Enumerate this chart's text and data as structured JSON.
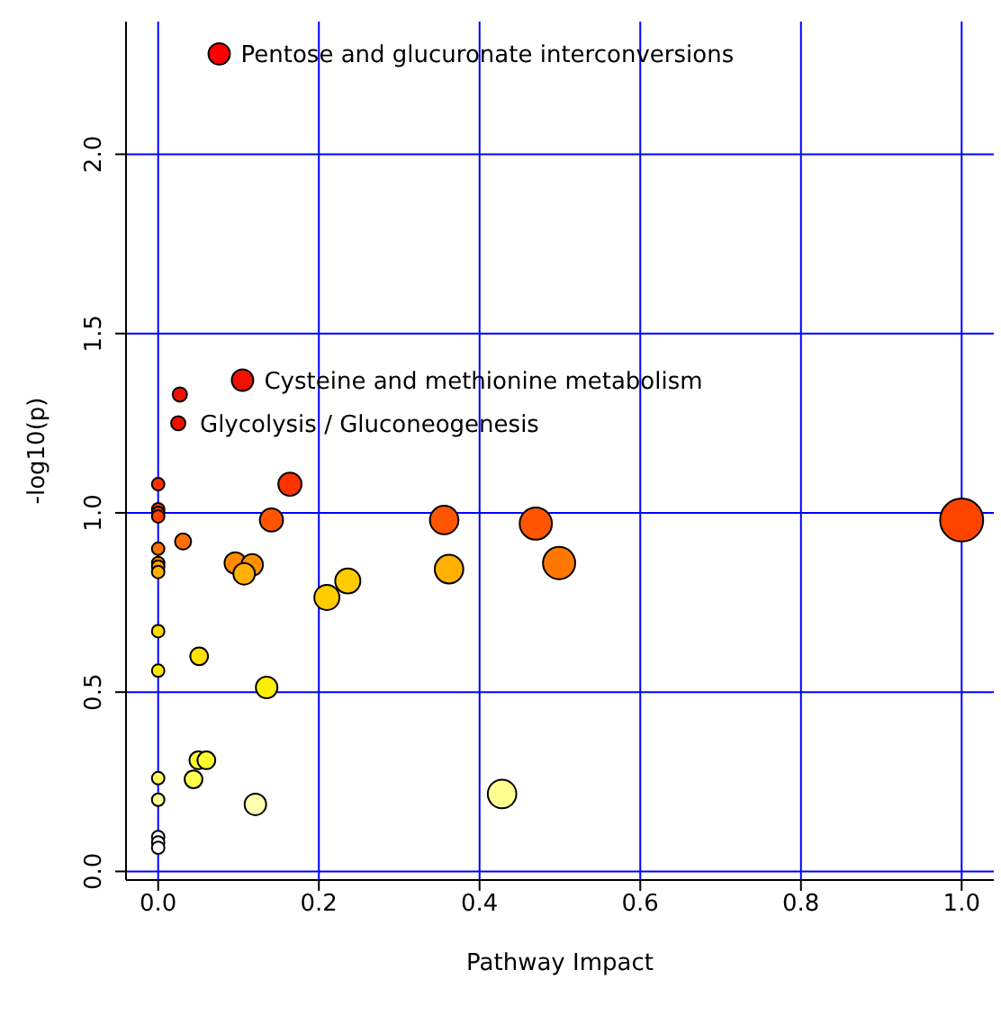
{
  "chart_data": {
    "type": "bubble",
    "xlabel": "Pathway Impact",
    "ylabel": "-log10(p)",
    "xlim": [
      -0.04,
      1.04
    ],
    "xticks": [
      {
        "value": 0,
        "label": "0.0"
      },
      {
        "value": 0.2,
        "label": "0.2"
      },
      {
        "value": 0.4,
        "label": "0.4"
      },
      {
        "value": 0.6,
        "label": "0.6"
      },
      {
        "value": 0.8,
        "label": "0.8"
      },
      {
        "value": 1,
        "label": "1.0"
      }
    ],
    "ylim": [
      -0.024,
      2.37
    ],
    "yticks": [
      {
        "value": 0,
        "label": "0.0"
      },
      {
        "value": 0.5,
        "label": "0.5"
      },
      {
        "value": 1,
        "label": "1.0"
      },
      {
        "value": 1.5,
        "label": "1.5"
      },
      {
        "value": 2,
        "label": "2.0"
      }
    ],
    "grid": true,
    "x": [
      0.076,
      0.105,
      0.027,
      0.025,
      0,
      0,
      0,
      0,
      0.031,
      0,
      0,
      0,
      0,
      0,
      0.051,
      0,
      0.135,
      0.05,
      0.06,
      0.044,
      0,
      0,
      0.121,
      0,
      0,
      0,
      0.096,
      0.117,
      0.107,
      0.141,
      0.164,
      0.21,
      0.236,
      0.356,
      0.47,
      0.499,
      0.362,
      0.428,
      1.0
    ],
    "values": [
      2.28,
      1.37,
      1.33,
      1.25,
      1.08,
      1.01,
      1.0,
      0.99,
      0.92,
      0.9,
      0.86,
      0.85,
      0.835,
      0.67,
      0.6,
      0.56,
      0.513,
      0.31,
      0.31,
      0.257,
      0.26,
      0.2,
      0.187,
      0.096,
      0.081,
      0.066,
      0.86,
      0.855,
      0.83,
      0.98,
      1.08,
      0.764,
      0.81,
      0.98,
      0.97,
      0.86,
      0.843,
      0.216,
      0.98
    ],
    "sizes": [
      0.25,
      0.25,
      0.11,
      0.11,
      0.085,
      0.085,
      0.085,
      0.085,
      0.14,
      0.085,
      0.085,
      0.085,
      0.085,
      0.085,
      0.17,
      0.085,
      0.25,
      0.17,
      0.17,
      0.17,
      0.085,
      0.085,
      0.25,
      0.085,
      0.085,
      0.085,
      0.25,
      0.25,
      0.25,
      0.29,
      0.29,
      0.34,
      0.34,
      0.44,
      0.56,
      0.56,
      0.44,
      0.44,
      1
    ],
    "colors": [
      "#ff0000",
      "#ee1100",
      "#ee1100",
      "#ee1100",
      "#ff3000",
      "#ff4000",
      "#ff4000",
      "#ff4000",
      "#ff7000",
      "#ff7000",
      "#ff9000",
      "#ffa000",
      "#ffb000",
      "#ffdd00",
      "#ffe000",
      "#ffe800",
      "#ffee00",
      "#ffff30",
      "#ffff30",
      "#ffff50",
      "#ffff60",
      "#ffff90",
      "#ffffb0",
      "#ffffff",
      "#ffffff",
      "#ffffff",
      "#ff8800",
      "#ff9000",
      "#ffb000",
      "#ff5500",
      "#ff3300",
      "#ffcc00",
      "#ffcc00",
      "#ff5500",
      "#ff5500",
      "#ff7700",
      "#ffb000",
      "#ffff90",
      "#ff4400"
    ],
    "annotations": [
      {
        "text": "Pentose and glucuronate interconversions",
        "x": 0.076,
        "y": 2.28
      },
      {
        "text": "Cysteine and methionine metabolism",
        "x": 0.105,
        "y": 1.37
      },
      {
        "text": "Glycolysis / Gluconeogenesis",
        "x": 0.025,
        "y": 1.25
      }
    ]
  }
}
